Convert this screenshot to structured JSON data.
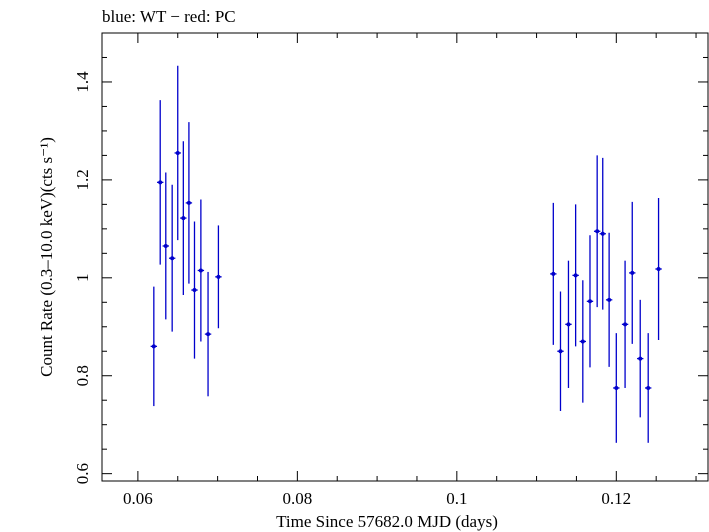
{
  "chart_data": {
    "type": "scatter",
    "title": "blue: WT − red: PC",
    "xlabel": "Time Since 57682.0 MJD (days)",
    "ylabel": "Count Rate (0.3–10.0 keV)(cts s⁻¹)",
    "xlim": [
      0.0555,
      0.1315
    ],
    "ylim": [
      0.585,
      1.5
    ],
    "xticks": [
      0.06,
      0.08,
      0.1,
      0.12
    ],
    "xtick_labels": [
      "0.06",
      "0.08",
      "0.1",
      "0.12"
    ],
    "yticks": [
      0.6,
      0.8,
      1.0,
      1.2,
      1.4
    ],
    "ytick_labels": [
      "0.6",
      "0.8",
      "1",
      "1.2",
      "1.4"
    ],
    "grid": false,
    "series": [
      {
        "color": "#0000cc",
        "points": [
          {
            "x": 0.062,
            "y": 0.86,
            "yerr": 0.122,
            "xerr": 0.0004
          },
          {
            "x": 0.0628,
            "y": 1.195,
            "yerr": 0.168,
            "xerr": 0.0004
          },
          {
            "x": 0.0635,
            "y": 1.065,
            "yerr": 0.15,
            "xerr": 0.0004
          },
          {
            "x": 0.0643,
            "y": 1.04,
            "yerr": 0.15,
            "xerr": 0.0004
          },
          {
            "x": 0.065,
            "y": 1.255,
            "yerr": 0.178,
            "xerr": 0.0004
          },
          {
            "x": 0.0657,
            "y": 1.122,
            "yerr": 0.157,
            "xerr": 0.0004
          },
          {
            "x": 0.0664,
            "y": 1.153,
            "yerr": 0.165,
            "xerr": 0.0004
          },
          {
            "x": 0.0671,
            "y": 0.975,
            "yerr": 0.14,
            "xerr": 0.0004
          },
          {
            "x": 0.0679,
            "y": 1.015,
            "yerr": 0.145,
            "xerr": 0.0004
          },
          {
            "x": 0.0688,
            "y": 0.885,
            "yerr": 0.127,
            "xerr": 0.0004
          },
          {
            "x": 0.0701,
            "y": 1.002,
            "yerr": 0.105,
            "xerr": 0.0004
          },
          {
            "x": 0.1121,
            "y": 1.008,
            "yerr": 0.145,
            "xerr": 0.0004
          },
          {
            "x": 0.113,
            "y": 0.85,
            "yerr": 0.122,
            "xerr": 0.0004
          },
          {
            "x": 0.114,
            "y": 0.905,
            "yerr": 0.13,
            "xerr": 0.0004
          },
          {
            "x": 0.1149,
            "y": 1.005,
            "yerr": 0.145,
            "xerr": 0.0004
          },
          {
            "x": 0.1158,
            "y": 0.87,
            "yerr": 0.125,
            "xerr": 0.0004
          },
          {
            "x": 0.1167,
            "y": 0.952,
            "yerr": 0.135,
            "xerr": 0.0004
          },
          {
            "x": 0.1176,
            "y": 1.095,
            "yerr": 0.155,
            "xerr": 0.0004
          },
          {
            "x": 0.1183,
            "y": 1.09,
            "yerr": 0.155,
            "xerr": 0.0004
          },
          {
            "x": 0.1191,
            "y": 0.955,
            "yerr": 0.137,
            "xerr": 0.0004
          },
          {
            "x": 0.12,
            "y": 0.775,
            "yerr": 0.112,
            "xerr": 0.0004
          },
          {
            "x": 0.1211,
            "y": 0.905,
            "yerr": 0.13,
            "xerr": 0.0004
          },
          {
            "x": 0.122,
            "y": 1.01,
            "yerr": 0.145,
            "xerr": 0.0004
          },
          {
            "x": 0.123,
            "y": 0.835,
            "yerr": 0.12,
            "xerr": 0.0004
          },
          {
            "x": 0.124,
            "y": 0.775,
            "yerr": 0.112,
            "xerr": 0.0004
          },
          {
            "x": 0.1253,
            "y": 1.018,
            "yerr": 0.145,
            "xerr": 0.0004
          }
        ]
      }
    ]
  }
}
